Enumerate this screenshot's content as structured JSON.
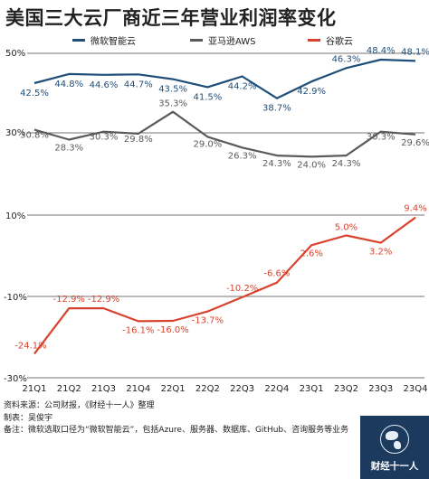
{
  "title": "美国三大云厂商近三年营业利润率变化",
  "legend": [
    {
      "name": "微软智能云",
      "color": "#1f4e79"
    },
    {
      "name": "亚马逊AWS",
      "color": "#5a5a5a"
    },
    {
      "name": "谷歌云",
      "color": "#d9432e"
    }
  ],
  "chart_data": {
    "type": "line",
    "categories": [
      "21Q1",
      "21Q2",
      "21Q3",
      "21Q4",
      "22Q1",
      "22Q2",
      "22Q3",
      "22Q4",
      "23Q1",
      "23Q2",
      "23Q3",
      "23Q4"
    ],
    "series": [
      {
        "name": "微软智能云",
        "color": "#1f4e79",
        "values": [
          42.5,
          44.8,
          44.6,
          44.7,
          43.5,
          41.5,
          44.2,
          38.7,
          42.9,
          46.3,
          48.4,
          48.1
        ],
        "labels": [
          "42.5%",
          "44.8%",
          "44.6%",
          "44.7%",
          "43.5%",
          "41.5%",
          "44.2%",
          "38.7%",
          "42.9%",
          "46.3%",
          "48.4%",
          "48.1%"
        ]
      },
      {
        "name": "亚马逊AWS",
        "color": "#5a5a5a",
        "values": [
          30.8,
          28.3,
          30.3,
          29.8,
          35.3,
          29.0,
          26.3,
          24.3,
          24.0,
          24.3,
          30.3,
          29.6
        ],
        "labels": [
          "30.8%",
          "28.3%",
          "30.3%",
          "29.8%",
          "35.3%",
          "29.0%",
          "26.3%",
          "24.3%",
          "24.0%",
          "24.3%",
          "30.3%",
          "29.6%"
        ]
      },
      {
        "name": "谷歌云",
        "color": "#d9432e",
        "values": [
          -24.1,
          -12.9,
          -12.9,
          -16.1,
          -16.0,
          -13.7,
          -10.2,
          -6.6,
          2.6,
          5.0,
          3.2,
          9.4
        ],
        "labels": [
          "-24.1%",
          "-12.9%",
          "-12.9%",
          "-16.1%",
          "-16.0%",
          "-13.7%",
          "-10.2%",
          "-6.6%",
          "2.6%",
          "5.0%",
          "3.2%",
          "9.4%"
        ]
      }
    ],
    "yticks_upper": [
      "50%",
      "30%"
    ],
    "yticks_lower": [
      "10%",
      "-10%",
      "-30%"
    ],
    "ylim_upper": [
      30,
      50
    ],
    "ylim_lower": [
      -30,
      10
    ]
  },
  "footer": {
    "source": "资料来源：公司财报，《财经十一人》整理",
    "author": "制表：吴俊宇",
    "note": "备注：微软选取口径为“微软智能云”，包括Azure、服务器、数据库、GitHub、咨询服务等业务"
  },
  "logo_text": "财经十一人"
}
